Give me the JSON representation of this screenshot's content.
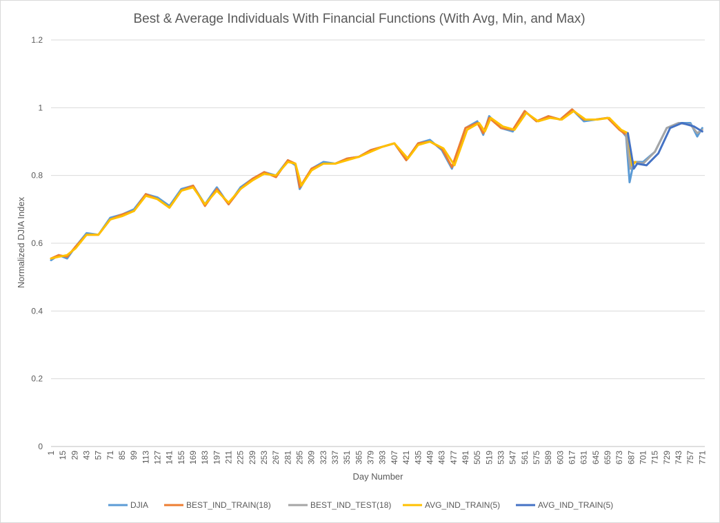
{
  "chart_data": {
    "type": "line",
    "title": "Best & Average Individuals With Financial Functions (With Avg, Min, and Max)",
    "xlabel": "Day Number",
    "ylabel": "Normalized DJIA Index",
    "xlim": [
      1,
      774
    ],
    "ylim": [
      0,
      1.2
    ],
    "y_ticks": [
      0,
      0.2,
      0.4,
      0.6,
      0.8,
      1,
      1.2
    ],
    "y_tick_labels": [
      "0",
      "0.2",
      "0.4",
      "0.6",
      "0.8",
      "1",
      "1.2"
    ],
    "x_tick_labels": [
      "1",
      "15",
      "29",
      "43",
      "57",
      "71",
      "85",
      "99",
      "113",
      "127",
      "141",
      "155",
      "169",
      "183",
      "197",
      "211",
      "225",
      "239",
      "253",
      "267",
      "281",
      "295",
      "309",
      "323",
      "337",
      "351",
      "365",
      "379",
      "393",
      "407",
      "421",
      "435",
      "449",
      "463",
      "477",
      "491",
      "505",
      "519",
      "533",
      "547",
      "561",
      "575",
      "589",
      "603",
      "617",
      "631",
      "645",
      "659",
      "673",
      "687",
      "701",
      "715",
      "729",
      "743",
      "757",
      "771"
    ],
    "grid": "horizontal",
    "legend_position": "bottom",
    "series": [
      {
        "name": "DJIA",
        "color": "#5b9bd5",
        "x": [
          1,
          10,
          20,
          30,
          43,
          57,
          71,
          85,
          99,
          113,
          127,
          141,
          155,
          169,
          183,
          197,
          211,
          225,
          239,
          253,
          267,
          281,
          290,
          295,
          309,
          323,
          337,
          351,
          365,
          379,
          393,
          407,
          421,
          435,
          449,
          463,
          475,
          491,
          505,
          512,
          519,
          533,
          547,
          561,
          575,
          589,
          603,
          617,
          631,
          645,
          659,
          673,
          681,
          685,
          690,
          701,
          715,
          729,
          743,
          757,
          765,
          771
        ],
        "y": [
          0.55,
          0.565,
          0.555,
          0.59,
          0.63,
          0.625,
          0.675,
          0.685,
          0.7,
          0.745,
          0.735,
          0.71,
          0.76,
          0.77,
          0.715,
          0.765,
          0.715,
          0.765,
          0.79,
          0.81,
          0.8,
          0.845,
          0.83,
          0.76,
          0.82,
          0.84,
          0.835,
          0.85,
          0.855,
          0.875,
          0.885,
          0.895,
          0.845,
          0.895,
          0.905,
          0.875,
          0.82,
          0.94,
          0.96,
          0.92,
          0.975,
          0.94,
          0.93,
          0.99,
          0.96,
          0.975,
          0.965,
          0.995,
          0.96,
          0.965,
          0.97,
          0.94,
          0.915,
          0.78,
          0.84,
          0.84,
          0.87,
          0.94,
          0.955,
          0.955,
          0.915,
          0.94
        ]
      },
      {
        "name": "BEST_IND_TRAIN(18)",
        "color": "#ed7d31",
        "x": [
          1,
          10,
          20,
          30,
          43,
          57,
          71,
          85,
          99,
          113,
          127,
          141,
          155,
          169,
          183,
          197,
          211,
          225,
          239,
          253,
          267,
          281,
          290,
          295,
          309,
          323,
          337,
          351,
          365,
          379,
          393,
          407,
          421,
          435,
          449,
          463,
          475,
          491,
          505,
          512,
          519,
          533,
          547,
          561,
          575,
          589,
          603,
          617,
          631,
          645,
          659,
          673,
          681,
          686,
          690,
          701
        ],
        "y": [
          0.555,
          0.565,
          0.56,
          0.59,
          0.625,
          0.625,
          0.67,
          0.685,
          0.695,
          0.745,
          0.73,
          0.705,
          0.755,
          0.77,
          0.71,
          0.76,
          0.715,
          0.76,
          0.79,
          0.81,
          0.795,
          0.845,
          0.835,
          0.765,
          0.82,
          0.835,
          0.835,
          0.85,
          0.855,
          0.875,
          0.885,
          0.895,
          0.845,
          0.895,
          0.9,
          0.88,
          0.825,
          0.94,
          0.955,
          0.925,
          0.97,
          0.94,
          0.935,
          0.99,
          0.96,
          0.975,
          0.965,
          0.995,
          0.965,
          0.965,
          0.97,
          0.935,
          0.92,
          0.82,
          0.84,
          0.835
        ]
      },
      {
        "name": "BEST_IND_TEST(18)",
        "color": "#a5a5a5",
        "x": [
          681,
          686,
          690,
          701,
          715,
          729,
          743,
          757,
          765,
          771
        ],
        "y": [
          0.92,
          0.82,
          0.84,
          0.835,
          0.87,
          0.94,
          0.955,
          0.95,
          0.925,
          0.935
        ]
      },
      {
        "name": "AVG_IND_TRAIN(5)",
        "color": "#ffc000",
        "x": [
          1,
          10,
          20,
          30,
          43,
          57,
          71,
          85,
          99,
          113,
          127,
          141,
          155,
          169,
          183,
          197,
          211,
          225,
          239,
          253,
          267,
          281,
          290,
          297,
          309,
          323,
          337,
          351,
          365,
          379,
          393,
          407,
          423,
          435,
          449,
          465,
          478,
          493,
          507,
          514,
          521,
          535,
          549,
          563,
          577,
          591,
          605,
          619,
          633,
          647,
          661,
          675,
          683,
          688,
          692
        ],
        "y": [
          0.555,
          0.56,
          0.565,
          0.585,
          0.625,
          0.625,
          0.67,
          0.68,
          0.695,
          0.74,
          0.73,
          0.705,
          0.755,
          0.765,
          0.715,
          0.755,
          0.72,
          0.76,
          0.785,
          0.805,
          0.8,
          0.84,
          0.835,
          0.77,
          0.815,
          0.835,
          0.835,
          0.845,
          0.855,
          0.87,
          0.885,
          0.895,
          0.85,
          0.89,
          0.9,
          0.88,
          0.83,
          0.935,
          0.955,
          0.93,
          0.97,
          0.945,
          0.935,
          0.985,
          0.96,
          0.97,
          0.965,
          0.99,
          0.965,
          0.965,
          0.97,
          0.935,
          0.925,
          0.83,
          0.84
        ]
      },
      {
        "name": "AVG_IND_TRAIN(5)",
        "color": "#4472c4",
        "x": [
          683,
          690,
          694,
          705,
          719,
          733,
          747,
          761,
          771
        ],
        "y": [
          0.925,
          0.82,
          0.835,
          0.83,
          0.865,
          0.94,
          0.955,
          0.945,
          0.93
        ]
      }
    ]
  }
}
